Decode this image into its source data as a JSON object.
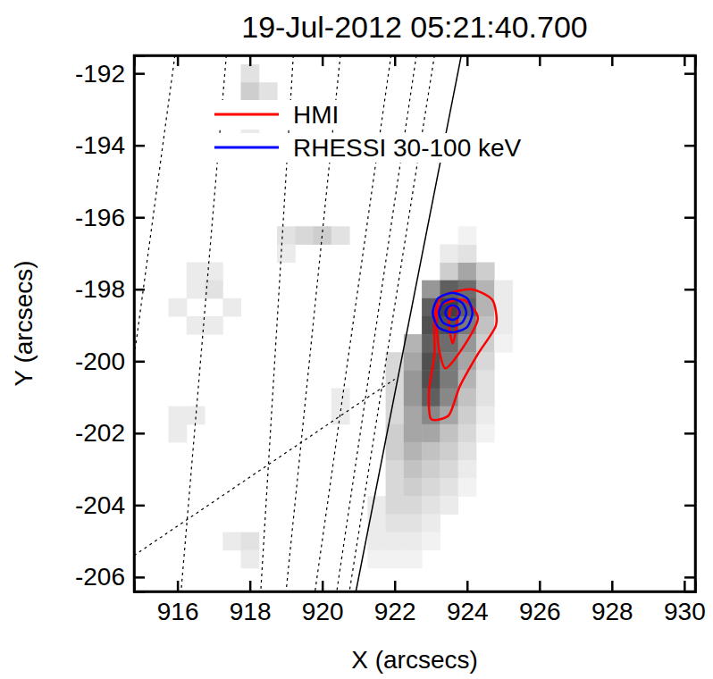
{
  "chart_data": {
    "type": "image",
    "title": "19-Jul-2012 05:21:40.700",
    "x_label": "X (arcsecs)",
    "y_label": "Y (arcsecs)",
    "xlim": [
      914.8,
      930.3
    ],
    "ylim": [
      -206.4,
      -191.5
    ],
    "xticks": [
      916,
      918,
      920,
      922,
      924,
      926,
      928,
      930
    ],
    "yticks": [
      -206,
      -204,
      -202,
      -200,
      -198,
      -196,
      -194,
      -192
    ],
    "legend": "upper left",
    "cells": [
      [
        923.5,
        -197.5,
        0.3
      ],
      [
        924,
        -197.5,
        0.45
      ],
      [
        924.5,
        -197.5,
        0.3
      ],
      [
        923.5,
        -197,
        0.15
      ],
      [
        924,
        -197,
        0.2
      ],
      [
        924,
        -196.5,
        0.1
      ],
      [
        923,
        -198,
        0.5
      ],
      [
        923.5,
        -198,
        0.7
      ],
      [
        924,
        -198,
        0.65
      ],
      [
        924.5,
        -198,
        0.4
      ],
      [
        925,
        -198,
        0.15
      ],
      [
        923,
        -198.5,
        0.7
      ],
      [
        923.5,
        -198.5,
        0.8
      ],
      [
        924,
        -198.5,
        0.7
      ],
      [
        924.5,
        -198.5,
        0.4
      ],
      [
        925,
        -198.5,
        0.15
      ],
      [
        923,
        -199,
        0.75
      ],
      [
        923.5,
        -199,
        0.75
      ],
      [
        924,
        -199,
        0.6
      ],
      [
        924.5,
        -199,
        0.35
      ],
      [
        925,
        -199,
        0.15
      ],
      [
        922.5,
        -199.5,
        0.4
      ],
      [
        923,
        -199.5,
        0.7
      ],
      [
        923.5,
        -199.5,
        0.65
      ],
      [
        924,
        -199.5,
        0.5
      ],
      [
        924.5,
        -199.5,
        0.3
      ],
      [
        925,
        -199.5,
        0.1
      ],
      [
        922,
        -200,
        0.25
      ],
      [
        922.5,
        -200,
        0.45
      ],
      [
        923,
        -200,
        0.75
      ],
      [
        923.5,
        -200,
        0.6
      ],
      [
        924,
        -200,
        0.45
      ],
      [
        924.5,
        -200,
        0.25
      ],
      [
        922,
        -200.5,
        0.25
      ],
      [
        922.5,
        -200.5,
        0.5
      ],
      [
        923,
        -200.5,
        0.75
      ],
      [
        923.5,
        -200.5,
        0.6
      ],
      [
        924,
        -200.5,
        0.4
      ],
      [
        924.5,
        -200.5,
        0.2
      ],
      [
        922,
        -201,
        0.25
      ],
      [
        922.5,
        -201,
        0.5
      ],
      [
        923,
        -201,
        0.7
      ],
      [
        923.5,
        -201,
        0.55
      ],
      [
        924,
        -201,
        0.35
      ],
      [
        924.5,
        -201,
        0.2
      ],
      [
        922,
        -201.5,
        0.25
      ],
      [
        922.5,
        -201.5,
        0.45
      ],
      [
        923,
        -201.5,
        0.55
      ],
      [
        923.5,
        -201.5,
        0.45
      ],
      [
        924,
        -201.5,
        0.3
      ],
      [
        924.5,
        -201.5,
        0.15
      ],
      [
        922,
        -202,
        0.3
      ],
      [
        922.5,
        -202,
        0.45
      ],
      [
        923,
        -202,
        0.45
      ],
      [
        923.5,
        -202,
        0.35
      ],
      [
        924,
        -202,
        0.25
      ],
      [
        924.5,
        -202,
        0.1
      ],
      [
        922,
        -202.5,
        0.3
      ],
      [
        922.5,
        -202.5,
        0.4
      ],
      [
        923,
        -202.5,
        0.35
      ],
      [
        923.5,
        -202.5,
        0.3
      ],
      [
        924,
        -202.5,
        0.2
      ],
      [
        922,
        -203,
        0.25
      ],
      [
        922.5,
        -203,
        0.35
      ],
      [
        923,
        -203,
        0.3
      ],
      [
        923.5,
        -203,
        0.25
      ],
      [
        924,
        -203,
        0.15
      ],
      [
        922,
        -203.5,
        0.25
      ],
      [
        922.5,
        -203.5,
        0.3
      ],
      [
        923,
        -203.5,
        0.25
      ],
      [
        923.5,
        -203.5,
        0.2
      ],
      [
        924,
        -203.5,
        0.1
      ],
      [
        921.5,
        -204,
        0.15
      ],
      [
        922,
        -204,
        0.25
      ],
      [
        922.5,
        -204,
        0.25
      ],
      [
        923,
        -204,
        0.2
      ],
      [
        923.5,
        -204,
        0.15
      ],
      [
        921.5,
        -204.5,
        0.15
      ],
      [
        922,
        -204.5,
        0.2
      ],
      [
        922.5,
        -204.5,
        0.2
      ],
      [
        923,
        -204.5,
        0.15
      ],
      [
        921.5,
        -205,
        0.15
      ],
      [
        922,
        -205,
        0.15
      ],
      [
        922.5,
        -205,
        0.15
      ],
      [
        923,
        -205,
        0.1
      ],
      [
        921.5,
        -205.5,
        0.1
      ],
      [
        922,
        -205.5,
        0.1
      ],
      [
        922.5,
        -205.5,
        0.1
      ],
      [
        918,
        -192,
        0.2
      ],
      [
        918,
        -192.5,
        0.3
      ],
      [
        918.5,
        -192.5,
        0.2
      ],
      [
        918,
        -193,
        0.25
      ],
      [
        918,
        -193.5,
        0.15
      ],
      [
        919,
        -196.5,
        0.2
      ],
      [
        919.5,
        -196.5,
        0.25
      ],
      [
        920,
        -196.5,
        0.3
      ],
      [
        920.5,
        -196.5,
        0.2
      ],
      [
        919,
        -197,
        0.15
      ],
      [
        916.5,
        -197.5,
        0.15
      ],
      [
        917,
        -197.5,
        0.15
      ],
      [
        916.5,
        -198,
        0.15
      ],
      [
        917,
        -198,
        0.2
      ],
      [
        916,
        -198.5,
        0.15
      ],
      [
        917.5,
        -198.5,
        0.15
      ],
      [
        916.5,
        -199,
        0.15
      ],
      [
        917,
        -199,
        0.15
      ],
      [
        916,
        -201.5,
        0.15
      ],
      [
        916.5,
        -201.5,
        0.15
      ],
      [
        916,
        -202,
        0.15
      ],
      [
        920.5,
        -201,
        0.15
      ],
      [
        920.5,
        -201.5,
        0.15
      ],
      [
        917.5,
        -205,
        0.15
      ],
      [
        918,
        -205,
        0.2
      ],
      [
        918,
        -205.5,
        0.15
      ]
    ],
    "lines": [
      {
        "line_style": "dashed",
        "x": [
          915.93,
          914.8
        ],
        "y": [
          -191.5,
          -199.9
        ]
      },
      {
        "line_style": "dashed",
        "x": [
          917.35,
          916.1
        ],
        "y": [
          -191.5,
          -206.4
        ]
      },
      {
        "line_style": "dashed",
        "x": [
          919.2,
          918.3
        ],
        "y": [
          -191.5,
          -206.4
        ]
      },
      {
        "line_style": "dashed",
        "x": [
          920.5,
          919.0
        ],
        "y": [
          -191.5,
          -206.4
        ]
      },
      {
        "line_style": "dashed",
        "x": [
          921.9,
          919.8
        ],
        "y": [
          -191.5,
          -206.4
        ]
      },
      {
        "line_style": "dashed",
        "x": [
          922.6,
          920.4
        ],
        "y": [
          -191.5,
          -206.4
        ]
      },
      {
        "line_style": "dashed",
        "x": [
          923.1,
          920.75
        ],
        "y": [
          -191.5,
          -206.4
        ]
      },
      {
        "line_style": "dashed",
        "x": [
          914.8,
          922.0
        ],
        "y": [
          -205.4,
          -200.5
        ]
      },
      {
        "line_style": "solid",
        "x": [
          923.84,
          920.93
        ],
        "y": [
          -191.5,
          -206.4
        ]
      }
    ],
    "series": [
      {
        "name": "HMI",
        "color": "#ff0000",
        "type": "contour",
        "contours": [
          {
            "x": [
              923.3,
              924.1,
              924.7,
              924.8,
              924.3,
              923.8,
              923.5,
              923.0,
              922.95,
              923.1,
              923.1
            ],
            "y": [
              -198.2,
              -198.0,
              -198.3,
              -199.0,
              -199.8,
              -200.7,
              -201.5,
              -201.6,
              -200.8,
              -199.8,
              -198.8
            ]
          },
          {
            "x": [
              923.2,
              923.9,
              924.3,
              923.9,
              923.4,
              923.2
            ],
            "y": [
              -198.5,
              -198.3,
              -198.8,
              -199.6,
              -200.2,
              -199.5
            ]
          },
          {
            "x": [
              923.55,
              923.75,
              923.7,
              923.6,
              923.5
            ],
            "y": [
              -198.5,
              -198.55,
              -199.1,
              -199.5,
              -199.0
            ]
          }
        ]
      },
      {
        "name": "RHESSI 30-100 keV",
        "color": "#0000ff",
        "type": "contour",
        "contours": [
          {
            "x": [
              923.05,
              923.2,
              923.6,
              924.0,
              924.15,
              924.0,
              923.6,
              923.2
            ],
            "y": [
              -198.65,
              -198.25,
              -198.1,
              -198.25,
              -198.65,
              -199.05,
              -199.2,
              -199.05
            ]
          },
          {
            "x": [
              923.22,
              923.33,
              923.6,
              923.87,
              923.98,
              923.87,
              923.6,
              923.33
            ],
            "y": [
              -198.65,
              -198.38,
              -198.27,
              -198.38,
              -198.65,
              -198.92,
              -199.03,
              -198.92
            ]
          },
          {
            "x": [
              923.4,
              923.46,
              923.6,
              923.74,
              923.8,
              923.74,
              923.6,
              923.46
            ],
            "y": [
              -198.65,
              -198.51,
              -198.45,
              -198.51,
              -198.65,
              -198.79,
              -198.85,
              -198.79
            ]
          }
        ]
      }
    ]
  }
}
